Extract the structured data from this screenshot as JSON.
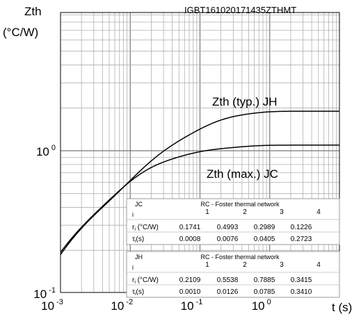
{
  "chart_data": {
    "type": "line",
    "id_label": "IGBT161020171435ZTHMT",
    "y_label_line1": "Zth",
    "y_label_line2": "(°C/W)",
    "x_label": "t (s)",
    "x_scale": "log",
    "y_scale": "log",
    "xlim": [
      0.001,
      10
    ],
    "ylim": [
      0.1,
      3
    ],
    "x_ticks": [
      {
        "base": "10",
        "exp": "-3"
      },
      {
        "base": "10",
        "exp": "-2"
      },
      {
        "base": "10",
        "exp": "-1"
      },
      {
        "base": "10",
        "exp": "0"
      }
    ],
    "y_ticks": [
      {
        "base": "10",
        "exp": "-1"
      },
      {
        "base": "10",
        "exp": "0"
      }
    ],
    "grid": true,
    "series": [
      {
        "name": "Zth (typ.) JH",
        "r": [
          0.2109,
          0.5538,
          0.7885,
          0.3415
        ],
        "tau": [
          0.001,
          0.0126,
          0.0785,
          0.341
        ]
      },
      {
        "name": "Zth (max.) JC",
        "r": [
          0.1741,
          0.4993,
          0.2989,
          0.1226
        ],
        "tau": [
          0.0008,
          0.0076,
          0.0405,
          0.2723
        ]
      }
    ],
    "tables": [
      {
        "key": "JC",
        "title": "RC - Foster thermal network",
        "i_label": "i",
        "r_label": "r",
        "r_sub": "i",
        "r_unit": " (°C/W)",
        "tau_label": "τ",
        "tau_sub": "i",
        "tau_unit": "(s)",
        "idx": [
          "1",
          "2",
          "3",
          "4"
        ],
        "r": [
          "0.1741",
          "0.4993",
          "0.2989",
          "0.1226"
        ],
        "tau": [
          "0.0008",
          "0.0076",
          "0.0405",
          "0.2723"
        ]
      },
      {
        "key": "JH",
        "title": "RC - Foster thermal network",
        "i_label": "i",
        "r_label": "r",
        "r_sub": "i",
        "r_unit": " (°C/W)",
        "tau_label": "τ",
        "tau_sub": "i",
        "tau_unit": "(s)",
        "idx": [
          "1",
          "2",
          "3",
          "4"
        ],
        "r": [
          "0.2109",
          "0.5538",
          "0.7885",
          "0.3415"
        ],
        "tau": [
          "0.0010",
          "0.0126",
          "0.0785",
          "0.3410"
        ]
      }
    ]
  }
}
